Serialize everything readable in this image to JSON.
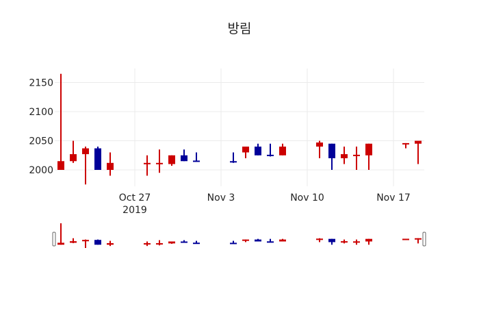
{
  "chart_data": {
    "type": "candlestick",
    "title": "방림",
    "xlabel": "",
    "ylabel": "",
    "ylim": [
      1970,
      2170
    ],
    "grid": true,
    "legend": false,
    "increasing_color": "#cc0000",
    "decreasing_color": "#000099",
    "y_ticks": [
      2000,
      2050,
      2100,
      2150
    ],
    "x_ticks": [
      {
        "date": "2019-10-27",
        "label": "Oct 27",
        "sublabel": "2019"
      },
      {
        "date": "2019-11-03",
        "label": "Nov 3",
        "sublabel": ""
      },
      {
        "date": "2019-11-10",
        "label": "Nov 10",
        "sublabel": ""
      },
      {
        "date": "2019-11-17",
        "label": "Nov 17",
        "sublabel": ""
      }
    ],
    "x_range": [
      "2019-10-20T12:00",
      "2019-11-19T12:00"
    ],
    "range_slider": true,
    "candles": [
      {
        "date": "2019-10-21",
        "open": 2000,
        "high": 2165,
        "low": 2000,
        "close": 2015
      },
      {
        "date": "2019-10-22",
        "open": 2015,
        "high": 2050,
        "low": 2012,
        "close": 2027
      },
      {
        "date": "2019-10-23",
        "open": 2027,
        "high": 2040,
        "low": 1975,
        "close": 2037
      },
      {
        "date": "2019-10-24",
        "open": 2037,
        "high": 2040,
        "low": 2000,
        "close": 2000
      },
      {
        "date": "2019-10-25",
        "open": 2000,
        "high": 2030,
        "low": 1990,
        "close": 2012
      },
      {
        "date": "2019-10-28",
        "open": 2010,
        "high": 2025,
        "low": 1990,
        "close": 2012
      },
      {
        "date": "2019-10-29",
        "open": 2010,
        "high": 2035,
        "low": 1995,
        "close": 2012
      },
      {
        "date": "2019-10-30",
        "open": 2010,
        "high": 2025,
        "low": 2007,
        "close": 2025
      },
      {
        "date": "2019-10-31",
        "open": 2025,
        "high": 2035,
        "low": 2015,
        "close": 2015
      },
      {
        "date": "2019-11-01",
        "open": 2016,
        "high": 2030,
        "low": 2014,
        "close": 2014
      },
      {
        "date": "2019-11-04",
        "open": 2015,
        "high": 2030,
        "low": 2012,
        "close": 2013
      },
      {
        "date": "2019-11-05",
        "open": 2030,
        "high": 2040,
        "low": 2020,
        "close": 2040
      },
      {
        "date": "2019-11-06",
        "open": 2040,
        "high": 2045,
        "low": 2025,
        "close": 2025
      },
      {
        "date": "2019-11-07",
        "open": 2026,
        "high": 2045,
        "low": 2023,
        "close": 2024
      },
      {
        "date": "2019-11-08",
        "open": 2025,
        "high": 2045,
        "low": 2025,
        "close": 2040
      },
      {
        "date": "2019-11-11",
        "open": 2040,
        "high": 2050,
        "low": 2020,
        "close": 2047
      },
      {
        "date": "2019-11-12",
        "open": 2045,
        "high": 2045,
        "low": 2000,
        "close": 2020
      },
      {
        "date": "2019-11-13",
        "open": 2020,
        "high": 2040,
        "low": 2010,
        "close": 2027
      },
      {
        "date": "2019-11-14",
        "open": 2024,
        "high": 2040,
        "low": 2000,
        "close": 2026
      },
      {
        "date": "2019-11-15",
        "open": 2025,
        "high": 2045,
        "low": 2000,
        "close": 2045
      },
      {
        "date": "2019-11-18",
        "open": 2045,
        "high": 2046,
        "low": 2037,
        "close": 2046
      },
      {
        "date": "2019-11-19",
        "open": 2045,
        "high": 2050,
        "low": 2010,
        "close": 2050
      }
    ]
  }
}
